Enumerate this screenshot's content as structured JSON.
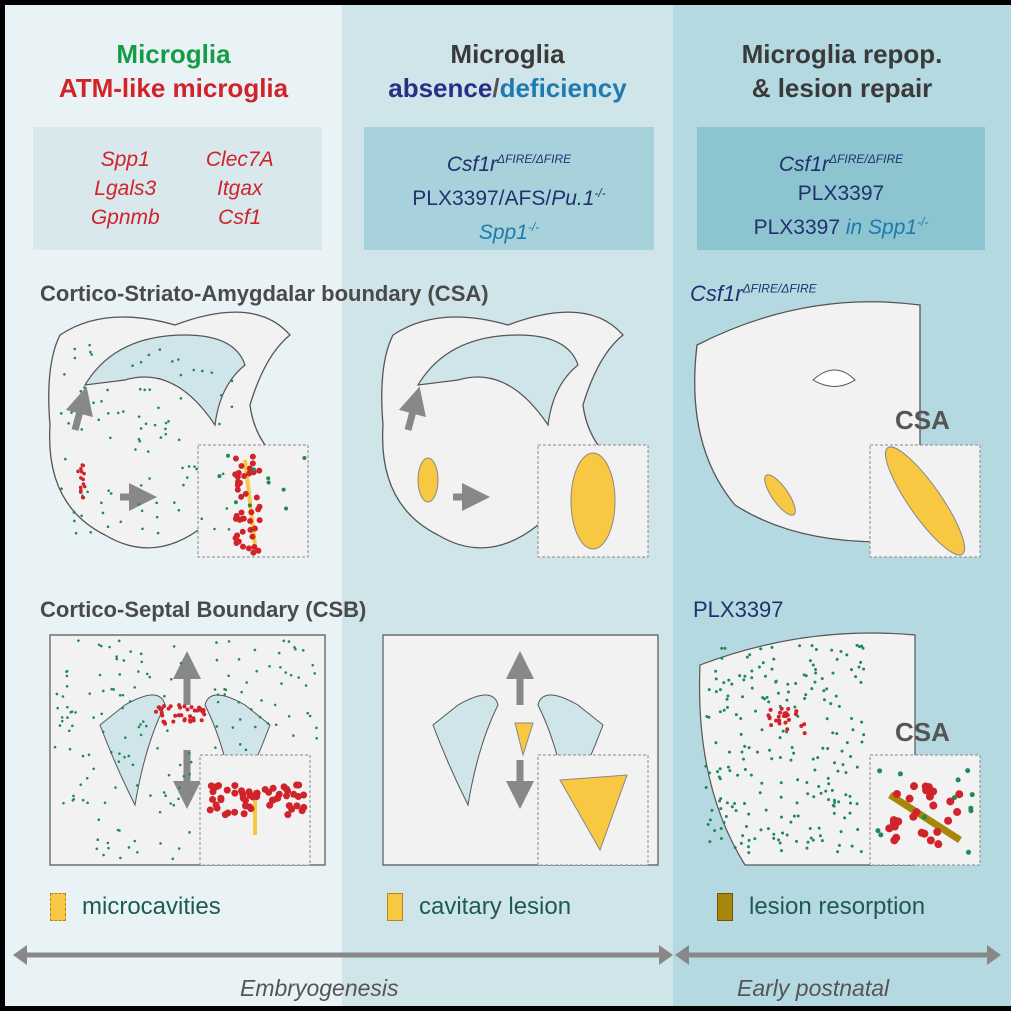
{
  "columns": [
    {
      "title_line1": "Microglia",
      "title_line2": "ATM-like microglia",
      "title_colors": [
        "#169c47",
        "#d0232a"
      ],
      "genes": [
        "Spp1",
        "Clec7A",
        "Lgals3",
        "Itgax",
        "Gpnmb",
        "Csf1"
      ]
    },
    {
      "title_line1": "Microglia",
      "title_line2a": "absence",
      "title_sep": "/",
      "title_line2b": "deficiency",
      "models": {
        "m1": "Csf1r",
        "m1_sup": "ΔFIRE/ΔFIRE",
        "m2": "PLX3397/AFS/",
        "m2_it": "Pu.1",
        "m2_sup": "-/-",
        "m3": "Spp1",
        "m3_sup": "-/-"
      }
    },
    {
      "title_line1": "Microglia repop.",
      "title_line2": "& lesion repair",
      "models": {
        "m1": "Csf1r",
        "m1_sup": "ΔFIRE/ΔFIRE",
        "m2": "PLX3397",
        "m3": "PLX3397",
        "m3_it": " in Spp1",
        "m3_sup": "-/-"
      }
    }
  ],
  "sections": {
    "csa": "Cortico-Striato-Amygdalar boundary (CSA)",
    "csb": "Cortico-Septal Boundary (CSB)",
    "right_top": "Csf1r",
    "right_top_sup": "ΔFIRE/ΔFIRE",
    "right_bottom": "PLX3397",
    "csa_label": "CSA"
  },
  "legend": [
    {
      "label": "microcavities",
      "color": "#f9c842"
    },
    {
      "label": "cavitary lesion",
      "color": "#f9c842"
    },
    {
      "label": "lesion resorption",
      "color": "#a8860a"
    }
  ],
  "timeline": {
    "embryo": "Embryogenesis",
    "postnatal": "Early postnatal"
  },
  "colors": {
    "microglia": "#1e8a5a",
    "atm": "#d0232a",
    "lesion": "#f9c842",
    "arrow": "#888888"
  }
}
